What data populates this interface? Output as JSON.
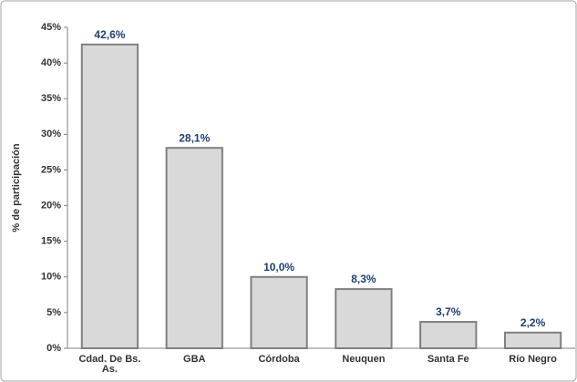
{
  "chart_data": {
    "type": "bar",
    "y_label": "% de participación",
    "categories": [
      "Cdad. De Bs. As.",
      "GBA",
      "Córdoba",
      "Neuquen",
      "Santa Fe",
      "Río Negro"
    ],
    "values": [
      42.6,
      28.1,
      10.0,
      8.3,
      3.7,
      2.2
    ],
    "value_labels": [
      "42,6%",
      "28,1%",
      "10,0%",
      "8,3%",
      "3,7%",
      "2,2%"
    ],
    "color": "#d9d9d9",
    "ylim": [
      0,
      45
    ],
    "yticks": [
      {
        "value": 0,
        "label": "0%"
      },
      {
        "value": 5,
        "label": "5%"
      },
      {
        "value": 10,
        "label": "10%"
      },
      {
        "value": 15,
        "label": "15%"
      },
      {
        "value": 20,
        "label": "20%"
      },
      {
        "value": 25,
        "label": "25%"
      },
      {
        "value": 30,
        "label": "30%"
      },
      {
        "value": 35,
        "label": "35%"
      },
      {
        "value": 40,
        "label": "40%"
      },
      {
        "value": 45,
        "label": "45%"
      }
    ],
    "grid": false
  }
}
